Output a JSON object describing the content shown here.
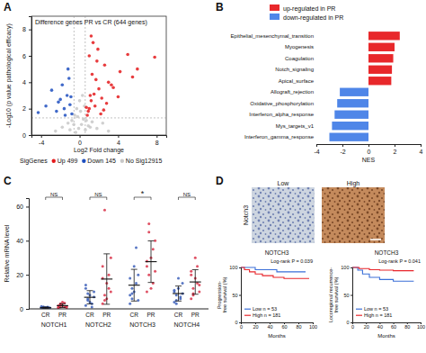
{
  "chart_data": [
    {
      "type": "scatter",
      "panel_label": "A",
      "title": "Difference genes PR vs CR (644 genes)",
      "x_label": "Log2 Fold change",
      "y_label": "-Log10 (p value pathological efficacy)",
      "legend_title": "SigGenes",
      "legend": "bottom",
      "xlim": [
        -5,
        9
      ],
      "ylim": [
        0,
        9
      ],
      "xticks": [
        -4,
        0,
        4,
        8
      ],
      "yticks": [
        0,
        2,
        4,
        6,
        8
      ],
      "thresholds": {
        "x": [
          -0.58,
          0.58
        ],
        "y": 1.3
      },
      "series": [
        {
          "name": "Up 499",
          "color": "#e41a1c",
          "x": [
            0.8,
            1.0,
            1.2,
            1.5,
            1.7,
            2.0,
            2.3,
            2.6,
            3.0,
            3.5,
            4.2,
            5.0,
            6.0,
            7.8,
            0.9,
            1.1,
            1.3,
            1.6,
            1.9,
            2.2,
            2.8,
            3.3,
            0.7,
            1.4,
            1.8,
            2.5,
            4.0,
            5.5,
            1.0,
            1.2
          ],
          "y": [
            1.5,
            2.0,
            2.6,
            3.1,
            4.2,
            3.5,
            2.8,
            5.3,
            4.0,
            3.6,
            4.8,
            6.1,
            5.0,
            5.9,
            1.8,
            3.0,
            4.6,
            2.2,
            6.5,
            1.6,
            2.4,
            3.8,
            2.1,
            7.0,
            5.6,
            1.9,
            2.9,
            4.4,
            6.0,
            7.5
          ]
        },
        {
          "name": "Down 145",
          "color": "#1f4fbf",
          "x": [
            -0.8,
            -1.0,
            -1.3,
            -1.6,
            -2.0,
            -2.4,
            -2.9,
            -3.5,
            -4.3,
            -1.1,
            -1.5,
            -1.8,
            -2.2,
            -0.9,
            -1.2
          ],
          "y": [
            1.6,
            2.3,
            3.0,
            2.0,
            2.7,
            1.8,
            3.4,
            2.2,
            1.7,
            4.3,
            1.5,
            3.8,
            2.5,
            2.9,
            5.0
          ]
        },
        {
          "name": "No Sig12915",
          "color": "#c8c8c8",
          "x": [
            -2.5,
            -1.8,
            -1.2,
            -0.8,
            -0.5,
            -0.3,
            -0.1,
            0.0,
            0.1,
            0.2,
            0.4,
            0.6,
            0.9,
            1.3,
            1.8,
            2.4,
            3.0,
            -0.4,
            0.3,
            -0.2,
            0.5,
            -0.6,
            0.7,
            -1.0,
            1.1
          ],
          "y": [
            0.3,
            0.6,
            0.9,
            1.1,
            1.5,
            2.0,
            0.5,
            2.6,
            1.8,
            0.8,
            1.2,
            0.4,
            0.7,
            1.0,
            0.5,
            0.9,
            0.3,
            0.2,
            3.0,
            1.4,
            2.2,
            0.8,
            1.1,
            0.4,
            0.6
          ]
        }
      ]
    },
    {
      "type": "bar",
      "orientation": "horizontal",
      "panel_label": "B",
      "x_label": "NES",
      "legend": "top",
      "categories": [
        "Epithelial_mesenchymal_transition",
        "Myogenesis",
        "Coagulation",
        "Notch_signaling",
        "Apical_surface",
        "Allograft_rejection",
        "Oxidative_phosphorylation",
        "Interferon_alpha_response",
        "Mys_targets_v1",
        "Interferon_gamma_response"
      ],
      "xlim": [
        -4,
        4
      ],
      "xticks": [
        -4,
        -2,
        0,
        2,
        4
      ],
      "series": [
        {
          "name": "up-regulated in PR",
          "color": "#e8282b",
          "values": [
            2.4,
            2.0,
            1.9,
            1.8,
            1.75,
            null,
            null,
            null,
            null,
            null
          ]
        },
        {
          "name": "down-regulated in PR",
          "color": "#4f86e8",
          "values": [
            null,
            null,
            null,
            null,
            null,
            -2.2,
            -2.4,
            -2.6,
            -2.8,
            -3.0
          ]
        }
      ]
    },
    {
      "type": "strip",
      "panel_label": "C",
      "y_label": "Relative mRNA level",
      "ylim": [
        0,
        65
      ],
      "yticks": [
        0,
        20,
        40,
        60
      ],
      "genes": [
        {
          "name": "NOTCH1",
          "significance": "NS",
          "groups": [
            {
              "name": "CR",
              "color": "#2f55b5",
              "values": [
                0.2,
                0.5,
                0.8,
                1.0,
                0.3,
                0.6,
                1.2,
                0.4,
                0.9,
                0.7,
                1.5,
                0.2
              ],
              "mean": 0.7,
              "sd": 0.4
            },
            {
              "name": "PR",
              "color": "#d7263d",
              "values": [
                0.5,
                1.0,
                2.0,
                3.5,
                1.5,
                0.8,
                2.5,
                4.0,
                1.2,
                0.6,
                1.8,
                3.0
              ],
              "mean": 1.9,
              "sd": 1.1
            }
          ]
        },
        {
          "name": "NOTCH2",
          "significance": "NS",
          "groups": [
            {
              "name": "CR",
              "color": "#2f55b5",
              "values": [
                2,
                5,
                8,
                3,
                10,
                14,
                6,
                4,
                1,
                7,
                12,
                9
              ],
              "mean": 6.8,
              "sd": 3.9
            },
            {
              "name": "PR",
              "color": "#d7263d",
              "values": [
                3,
                8,
                15,
                20,
                10,
                25,
                58,
                6,
                12,
                30,
                18,
                5
              ],
              "mean": 17.5,
              "sd": 14.8
            }
          ]
        },
        {
          "name": "NOTCH3",
          "significance": "*",
          "groups": [
            {
              "name": "CR",
              "color": "#2f55b5",
              "values": [
                3,
                6,
                10,
                15,
                20,
                8,
                12,
                25,
                36,
                5,
                18,
                9
              ],
              "mean": 13.9,
              "sd": 9.3
            },
            {
              "name": "PR",
              "color": "#d7263d",
              "values": [
                10,
                20,
                30,
                15,
                40,
                25,
                50,
                12,
                35,
                22,
                28,
                45
              ],
              "mean": 27.7,
              "sd": 12.2
            }
          ]
        },
        {
          "name": "NOTCH4",
          "significance": "NS",
          "groups": [
            {
              "name": "CR",
              "color": "#2f55b5",
              "values": [
                4,
                8,
                12,
                6,
                15,
                10,
                3,
                18,
                7,
                9,
                11,
                5
              ],
              "mean": 9.0,
              "sd": 4.4
            },
            {
              "name": "PR",
              "color": "#d7263d",
              "values": [
                6,
                12,
                18,
                25,
                10,
                20,
                8,
                30,
                15,
                14,
                22,
                9
              ],
              "mean": 15.8,
              "sd": 7.2
            }
          ]
        }
      ]
    },
    {
      "type": "image",
      "panel_label": "D",
      "label": "Notch3",
      "images": [
        "Low",
        "High"
      ]
    },
    {
      "type": "line",
      "line_style": "step",
      "title": "NOTCH3",
      "annotation": "Log-rank P = 0.039",
      "x_label": "Months",
      "y_label": "Progression-free survival (%)",
      "legend": "bottom left",
      "xlim": [
        0,
        100
      ],
      "ylim": [
        0,
        100
      ],
      "xticks": [
        0,
        20,
        40,
        60,
        80,
        100
      ],
      "yticks": [
        0,
        50,
        100
      ],
      "series": [
        {
          "name": "Low n = 53",
          "color": "#3a6fd8",
          "x": [
            0,
            10,
            20,
            35,
            50,
            70,
            90
          ],
          "y": [
            100,
            100,
            96,
            96,
            92,
            92,
            92
          ]
        },
        {
          "name": "High n = 181",
          "color": "#e8262b",
          "x": [
            0,
            5,
            12,
            20,
            30,
            45,
            60,
            80,
            95
          ],
          "y": [
            100,
            96,
            92,
            88,
            85,
            82,
            80,
            80,
            80
          ]
        }
      ]
    },
    {
      "type": "line",
      "line_style": "step",
      "title": "NOTCH3",
      "annotation": "Log-rank P = 0.041",
      "x_label": "Months",
      "y_label": "Locoregional recurrence-free survival (%)",
      "legend": "bottom left",
      "xlim": [
        0,
        100
      ],
      "ylim": [
        0,
        100
      ],
      "xticks": [
        0,
        20,
        40,
        60,
        80,
        100
      ],
      "yticks": [
        0,
        50,
        100
      ],
      "series": [
        {
          "name": "Low n = 53",
          "color": "#3a6fd8",
          "x": [
            0,
            8,
            15,
            25,
            40,
            60,
            90
          ],
          "y": [
            100,
            95,
            88,
            82,
            78,
            75,
            75
          ]
        },
        {
          "name": "High n = 181",
          "color": "#e8262b",
          "x": [
            0,
            10,
            25,
            40,
            60,
            90
          ],
          "y": [
            100,
            98,
            96,
            95,
            94,
            94
          ]
        }
      ]
    }
  ]
}
